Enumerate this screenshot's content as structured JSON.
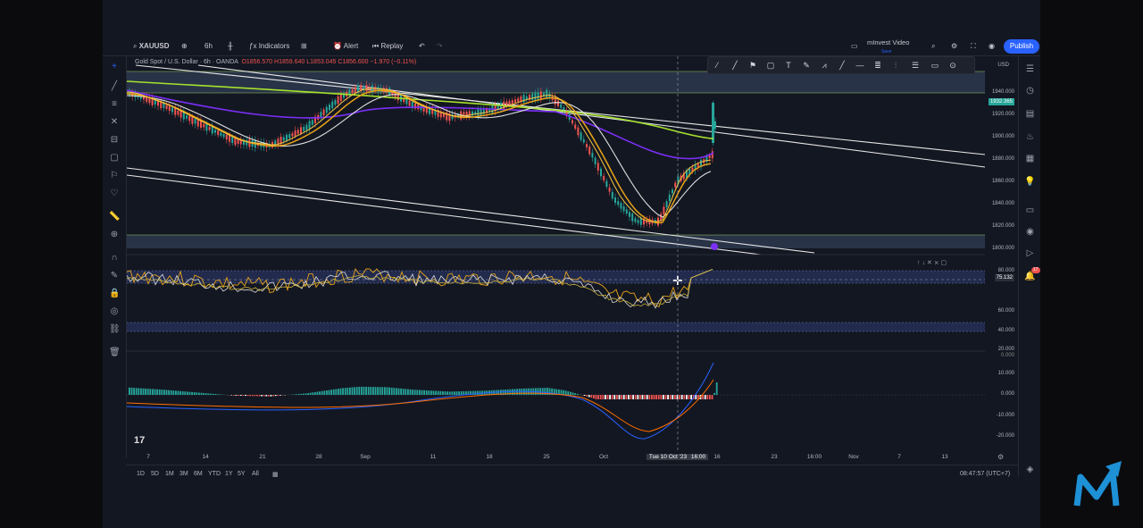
{
  "toolbar": {
    "symbol": "XAUUSD",
    "interval": "6h",
    "indicators_label": "Indicators",
    "alert_label": "Alert",
    "replay_label": "Replay",
    "layout_name": "mInvest Video",
    "layout_status": "Save",
    "publish_label": "Publish"
  },
  "legend": {
    "title": "Gold Spot / U.S. Dollar · 6h · OANDA",
    "open": "O1856.570",
    "high": "H1859.640",
    "low": "L1853.045",
    "close": "C1856.600",
    "change": "−1.970 (−0.11%)"
  },
  "price_axis": {
    "currency": "USD",
    "ticks": [
      "1940.000",
      "1920.000",
      "1900.000",
      "1880.000",
      "1860.000",
      "1840.000",
      "1820.000",
      "1800.000"
    ],
    "last_price": "1932.365"
  },
  "rsi_axis": {
    "ticks": [
      "80.000",
      "60.000",
      "40.000",
      "20.000",
      "0.000"
    ],
    "current": "75.132"
  },
  "macd_axis": {
    "ticks": [
      "10.000",
      "0.000",
      "-10.000",
      "-20.000"
    ]
  },
  "time_axis": {
    "labels": [
      "7",
      "14",
      "21",
      "28",
      "Sep",
      "11",
      "18",
      "25",
      "Oct",
      "16",
      "23",
      "16:00",
      "Nov",
      "7",
      "13"
    ],
    "crosshair_date": "Tue 10 Oct '23",
    "crosshair_time": "16:00"
  },
  "bottom": {
    "ranges": [
      "1D",
      "5D",
      "1M",
      "3M",
      "6M",
      "YTD",
      "1Y",
      "5Y",
      "All"
    ],
    "clock": "08:47:57 (UTC+7)"
  },
  "alerts_count": "17",
  "watermark": "17",
  "colors": {
    "bg": "#131722",
    "up": "#26a69a",
    "down": "#ef5350",
    "accent": "#2962ff",
    "ema_green": "#a6e22e",
    "ema_purple": "#7b2ff7",
    "ema_orange": "#e8a317",
    "ema_white": "#e0e0e0"
  }
}
